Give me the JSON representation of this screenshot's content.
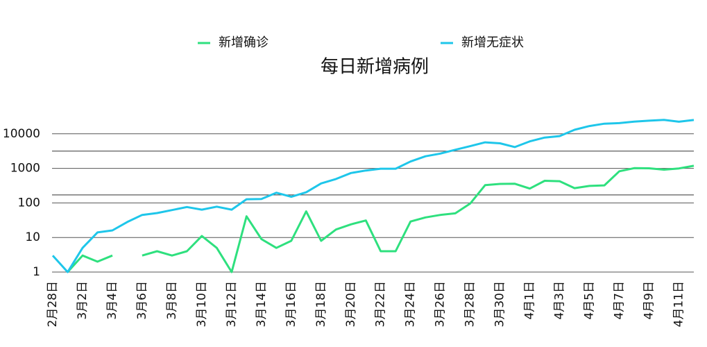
{
  "chart_data": {
    "type": "line",
    "title": "每日新增病例",
    "categories": [
      "2月28日",
      null,
      "3月2日",
      null,
      "3月4日",
      null,
      "3月6日",
      null,
      "3月8日",
      null,
      "3月10日",
      null,
      "3月12日",
      null,
      "3月14日",
      null,
      "3月16日",
      null,
      "3月18日",
      null,
      "3月20日",
      null,
      "3月22日",
      null,
      "3月24日",
      null,
      "3月26日",
      null,
      "3月28日",
      null,
      "3月30日",
      null,
      "4月1日",
      null,
      "4月3日",
      null,
      "4月5日",
      null,
      "4月7日",
      null,
      "4月9日",
      null,
      "4月11日",
      null
    ],
    "series": [
      {
        "name": "新增确诊",
        "color": "#2ee07e",
        "values": [
          null,
          1,
          3,
          2,
          3,
          null,
          3,
          4,
          3,
          4,
          11,
          5,
          1,
          41,
          9,
          5,
          8,
          57,
          8,
          17,
          24,
          31,
          4,
          4,
          29,
          38,
          45,
          50,
          96,
          326,
          355,
          358,
          260,
          438,
          425,
          268,
          311,
          322,
          824,
          1015,
          1006,
          914,
          994,
          1189
        ]
      },
      {
        "name": "新增无症状",
        "color": "#1ec6ea",
        "values": [
          3,
          1,
          5,
          14,
          16,
          28,
          45,
          51,
          62,
          76,
          64,
          78,
          64,
          128,
          130,
          197,
          150,
          203,
          366,
          492,
          734,
          865,
          977,
          979,
          1580,
          2231,
          2678,
          3450,
          4381,
          5656,
          5298,
          4144,
          6051,
          7788,
          8581,
          13086,
          16766,
          19660,
          20398,
          22609,
          23937,
          25173,
          22348,
          25141
        ]
      }
    ],
    "ylim": [
      1,
      100000
    ],
    "yticks": [
      1,
      10,
      100,
      1000,
      10000
    ],
    "log_scale": true,
    "grid": true,
    "reference_lines": [
      3162,
      170
    ],
    "legend": "top"
  }
}
